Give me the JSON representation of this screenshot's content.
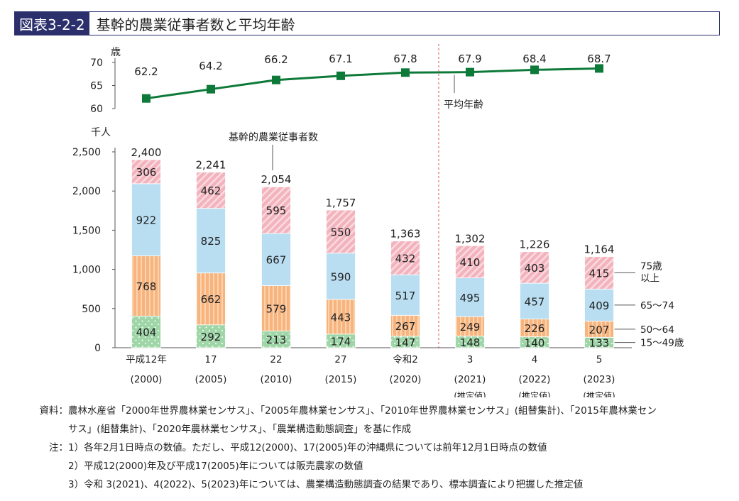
{
  "header": {
    "tag": "図表3-2-2",
    "title": "基幹的農業従事者数と平均年齢"
  },
  "chart_data": [
    {
      "type": "line",
      "ylabel": "歳",
      "ylim": [
        60,
        70
      ],
      "yticks": [
        60,
        65,
        70
      ],
      "series": [
        {
          "name": "平均年齢",
          "values": [
            62.2,
            64.2,
            66.2,
            67.1,
            67.8,
            67.9,
            68.4,
            68.7
          ]
        }
      ],
      "color": "#0e7a3a"
    },
    {
      "type": "bar",
      "stacked": true,
      "ylabel": "千人",
      "ylim": [
        0,
        2500
      ],
      "yticks": [
        0,
        500,
        1000,
        1500,
        2000,
        2500
      ],
      "ytick_labels": [
        "0",
        "500",
        "1,000",
        "1,500",
        "2,000",
        "2,500"
      ],
      "series_caption": "基幹的農業従事者数",
      "categories": [
        {
          "top": "平成12年",
          "bottom": "(2000)",
          "note": ""
        },
        {
          "top": "17",
          "bottom": "(2005)",
          "note": ""
        },
        {
          "top": "22",
          "bottom": "(2010)",
          "note": ""
        },
        {
          "top": "27",
          "bottom": "(2015)",
          "note": ""
        },
        {
          "top": "令和2",
          "bottom": "(2020)",
          "note": ""
        },
        {
          "top": "3",
          "bottom": "(2021)",
          "note": "(推定値)"
        },
        {
          "top": "4",
          "bottom": "(2022)",
          "note": "(推定値)"
        },
        {
          "top": "5",
          "bottom": "(2023)",
          "note": "(推定値)"
        }
      ],
      "totals": [
        "2,400",
        "2,241",
        "2,054",
        "1,757",
        "1,363",
        "1,302",
        "1,226",
        "1,164"
      ],
      "series": [
        {
          "name": "15～49歳",
          "values": [
            404,
            292,
            213,
            174,
            147,
            148,
            140,
            133
          ],
          "color": "#9fd6a8"
        },
        {
          "name": "50～64",
          "values": [
            768,
            662,
            579,
            443,
            267,
            249,
            226,
            207
          ],
          "color": "#f7b47f"
        },
        {
          "name": "65～74",
          "values": [
            922,
            825,
            667,
            590,
            517,
            495,
            457,
            409
          ],
          "color": "#b9def2"
        },
        {
          "name": "75歳以上",
          "values": [
            306,
            462,
            595,
            550,
            432,
            410,
            403,
            415
          ],
          "color": "#f3b3bd"
        }
      ],
      "legend_75": [
        "75歳",
        "以上"
      ]
    }
  ],
  "notes": {
    "source_head": "資料：",
    "source_1": "農林水産省「2000年世界農林業センサス」、「2005年農林業センサス」、「2010年世界農林業センサス」(組替集計)、「2015年農林業セン",
    "source_2": "サス」(組替集計)、「2020年農林業センサス」、「農業構造動態調査」を基に作成",
    "note_head": "注：",
    "note_1": "1）各年2月1日時点の数値。ただし、平成12(2000)、17(2005)年の沖縄県については前年12月1日時点の数値",
    "note_2": "2）平成12(2000)年及び平成17(2005)年については販売農家の数値",
    "note_3": "3）令和 3(2021)、4(2022)、5(2023)年については、農業構造動態調査の結果であり、標本調査により把握した推定値"
  }
}
